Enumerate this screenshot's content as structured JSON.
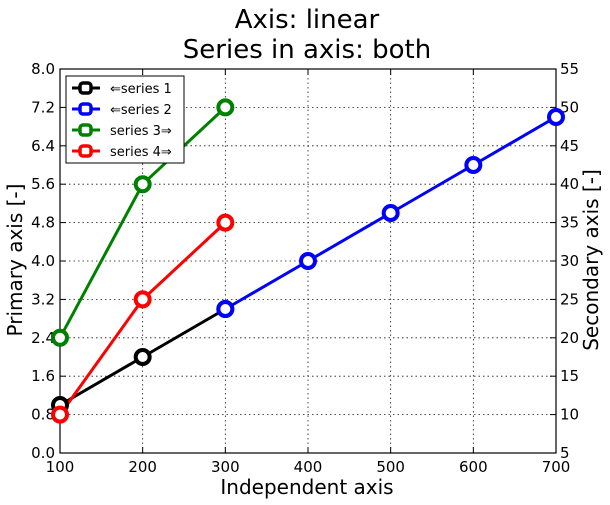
{
  "chart_data": {
    "type": "line",
    "title_line1": "Axis: linear",
    "title_line2": "Series in axis: both",
    "xlabel": "Independent axis",
    "ylabel": "Primary axis [-]",
    "y2label": "Secondary axis [-]",
    "xlim": [
      100,
      700
    ],
    "ylim": [
      0,
      8
    ],
    "y2lim": [
      5,
      55
    ],
    "x_ticks": [
      "100",
      "200",
      "300",
      "400",
      "500",
      "600",
      "700"
    ],
    "y_ticks": [
      "0.0",
      "0.8",
      "1.6",
      "2.4",
      "3.2",
      "4.0",
      "4.8",
      "5.6",
      "6.4",
      "7.2",
      "8.0"
    ],
    "y2_ticks": [
      "5",
      "10",
      "15",
      "20",
      "25",
      "30",
      "35",
      "40",
      "45",
      "50",
      "55"
    ],
    "grid": true,
    "legend_position": "top-left",
    "series": [
      {
        "name": "⇐series 1",
        "axis": "primary",
        "color": "#000000",
        "x": [
          100,
          200,
          300
        ],
        "y": [
          1.0,
          2.0,
          3.0
        ]
      },
      {
        "name": "⇐series 2",
        "axis": "primary",
        "color": "#0000ff",
        "x": [
          300,
          400,
          500,
          600,
          700
        ],
        "y": [
          3.0,
          4.0,
          5.0,
          6.0,
          7.0
        ]
      },
      {
        "name": "series 3⇒",
        "axis": "secondary",
        "color": "#008000",
        "x": [
          100,
          200,
          300
        ],
        "y": [
          20,
          40,
          50
        ]
      },
      {
        "name": "series 4⇒",
        "axis": "secondary",
        "color": "#ff0000",
        "x": [
          100,
          200,
          300
        ],
        "y": [
          10,
          25,
          35
        ]
      }
    ]
  }
}
